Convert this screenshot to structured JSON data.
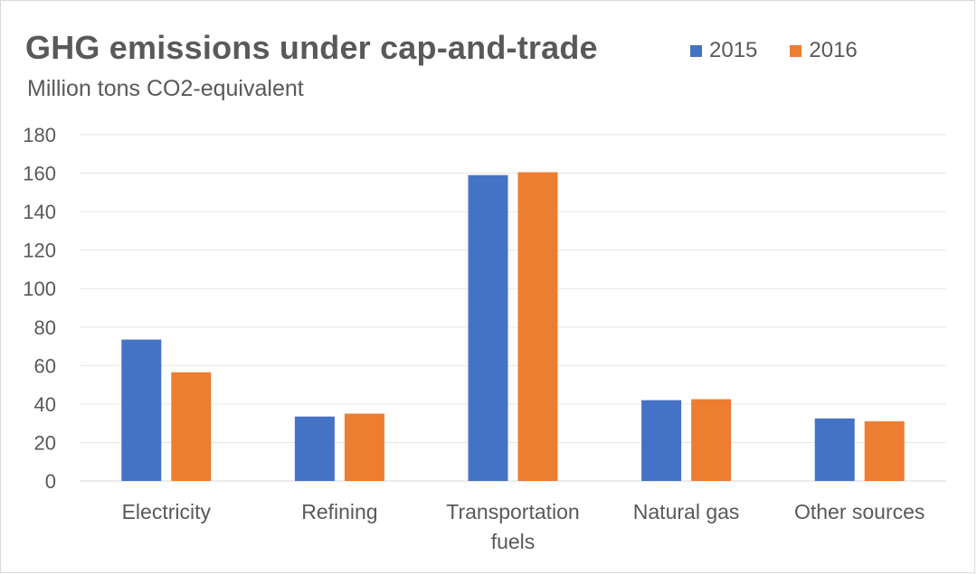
{
  "chart_data": {
    "type": "bar",
    "title": "GHG emissions under cap-and-trade",
    "subtitle": "Million tons CO2-equivalent",
    "categories": [
      [
        "Electricity"
      ],
      [
        "Refining"
      ],
      [
        "Transportation",
        "fuels"
      ],
      [
        "Natural gas"
      ],
      [
        "Other sources"
      ]
    ],
    "series": [
      {
        "name": "2015",
        "color": "#4472C4",
        "values": [
          73.5,
          33.5,
          159,
          42,
          32.5
        ]
      },
      {
        "name": "2016",
        "color": "#ED7D31",
        "values": [
          56.5,
          35,
          160.5,
          42.5,
          31
        ]
      }
    ],
    "ylim": [
      0,
      180
    ],
    "yticks": [
      "0",
      "20",
      "40",
      "60",
      "80",
      "100",
      "120",
      "140",
      "160",
      "180"
    ],
    "grid": true,
    "legend_position": "top-right"
  }
}
